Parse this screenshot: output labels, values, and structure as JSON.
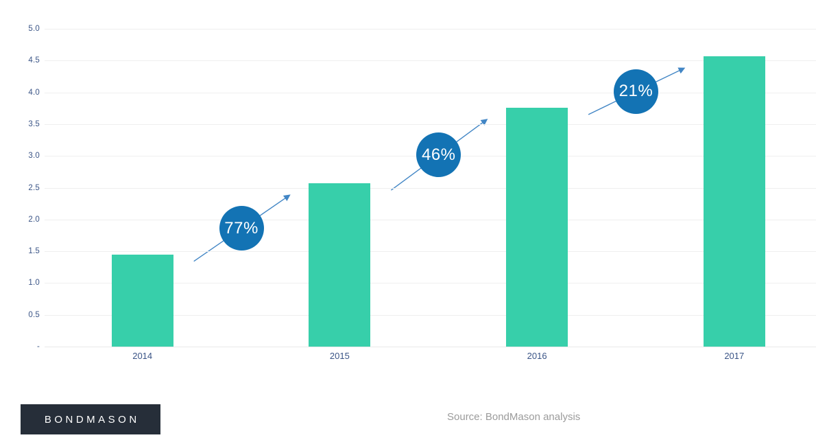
{
  "chart_data": {
    "type": "bar",
    "title": "",
    "xlabel": "",
    "ylabel": "",
    "categories": [
      "2014",
      "2015",
      "2016",
      "2017"
    ],
    "values": [
      1.45,
      2.57,
      3.76,
      4.57
    ],
    "growth": [
      {
        "from": "2014",
        "to": "2015",
        "label": "77%"
      },
      {
        "from": "2015",
        "to": "2016",
        "label": "46%"
      },
      {
        "from": "2016",
        "to": "2017",
        "label": "21%"
      }
    ],
    "ylim": [
      0,
      5.0
    ],
    "ytick_step": 0.5,
    "ytick_labels": [
      "-",
      "0.5",
      "1.0",
      "1.5",
      "2.0",
      "2.5",
      "3.0",
      "3.5",
      "4.0",
      "4.5",
      "5.0"
    ],
    "grid": true,
    "legend_position": "none",
    "colors": {
      "bar": "#37cfaa",
      "growth_circle": "#1373b4",
      "growth_circle_text": "#ffffff",
      "arrow": "#4286c5",
      "axis_text": "#3a5486",
      "gridline": "#efefef"
    }
  },
  "footer": {
    "logo_text": "BONDMASON",
    "source_text": "Source: BondMason analysis",
    "logo_bg": "#262e39",
    "logo_text_color": "#ffffff",
    "source_color": "#9b9b9b"
  }
}
